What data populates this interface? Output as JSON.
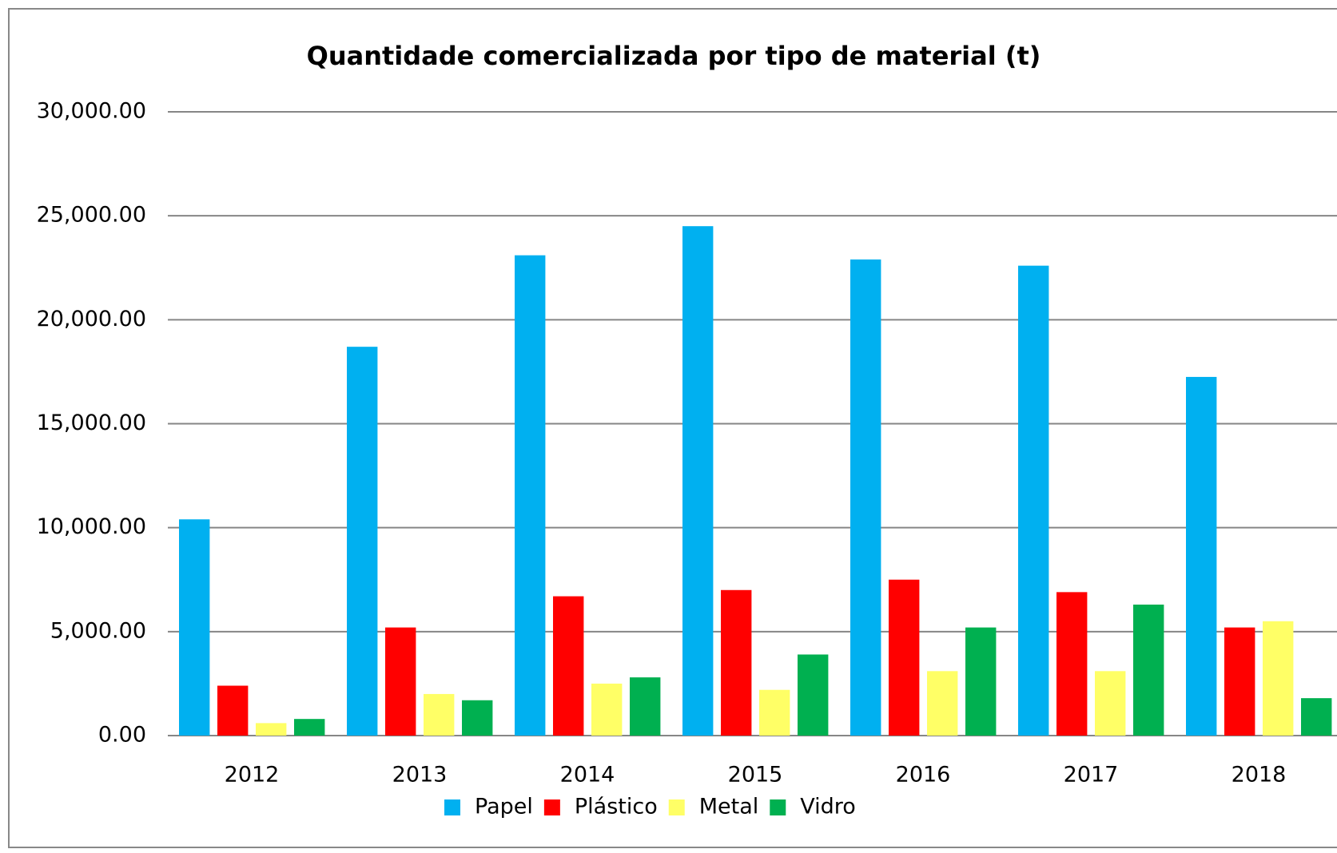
{
  "chart_data": {
    "type": "bar",
    "title": "Quantidade comercializada por tipo de material (t)",
    "categories": [
      "2012",
      "2013",
      "2014",
      "2015",
      "2016",
      "2017",
      "2018"
    ],
    "series": [
      {
        "name": "Papel",
        "color": "#00b0f0",
        "values": [
          10400,
          18700,
          23100,
          24500,
          22900,
          22600,
          17250
        ]
      },
      {
        "name": "Plástico",
        "color": "#ff0000",
        "values": [
          2400,
          5200,
          6700,
          7000,
          7500,
          6900,
          5200
        ]
      },
      {
        "name": "Metal",
        "color": "#ffff66",
        "values": [
          600,
          2000,
          2500,
          2200,
          3100,
          3100,
          5500
        ]
      },
      {
        "name": "Vidro",
        "color": "#00b050",
        "values": [
          800,
          1700,
          2800,
          3900,
          5200,
          6300,
          1800
        ]
      }
    ],
    "ylim": [
      0,
      30000
    ],
    "yticks": [
      {
        "value": 0,
        "label": "0.00"
      },
      {
        "value": 5000,
        "label": "5,000.00"
      },
      {
        "value": 10000,
        "label": "10,000.00"
      },
      {
        "value": 15000,
        "label": "15,000.00"
      },
      {
        "value": 20000,
        "label": "20,000.00"
      },
      {
        "value": 25000,
        "label": "25,000.00"
      },
      {
        "value": 30000,
        "label": "30,000.00"
      }
    ],
    "grid": true,
    "legend": "bottom"
  }
}
